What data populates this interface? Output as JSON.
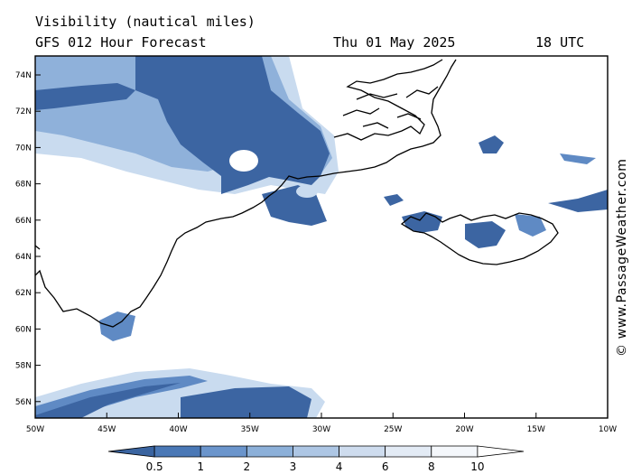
{
  "header": {
    "title": "Visibility (nautical miles)",
    "subtitle": "GFS 012 Hour Forecast",
    "date": "Thu 01 May 2025",
    "time": "18 UTC"
  },
  "credit": "© www.PassageWeather.com",
  "axes": {
    "lat_labels": [
      "74N",
      "72N",
      "70N",
      "68N",
      "66N",
      "64N",
      "62N",
      "60N",
      "58N",
      "56N"
    ],
    "lon_labels": [
      "50W",
      "45W",
      "40W",
      "35W",
      "30W",
      "25W",
      "20W",
      "15W",
      "10W"
    ]
  },
  "colorbar": {
    "labels": [
      "0.5",
      "1",
      "2",
      "3",
      "4",
      "6",
      "8",
      "10"
    ],
    "colors": [
      "#3a64a0",
      "#4a78b6",
      "#6b95cc",
      "#8cb0d9",
      "#adc6e4",
      "#cedcee",
      "#e3ebf5",
      "#f4f7fb",
      "#ffffff"
    ]
  },
  "palette": {
    "dark": "#3c65a2",
    "mid": "#5f8ac4",
    "light": "#8fb1da",
    "pale": "#c9dbef",
    "faint": "#e6eef8"
  }
}
